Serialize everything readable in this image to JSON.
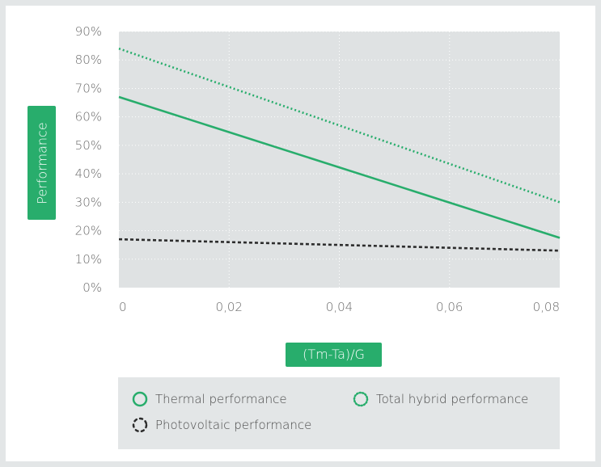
{
  "chart_data": {
    "type": "line",
    "title": "",
    "xlabel": "(Tm-Ta)/G",
    "ylabel": "Performance",
    "x_ticks": [
      "0",
      "0,02",
      "0,04",
      "0,06",
      "0,08"
    ],
    "y_ticks": [
      "0%",
      "10%",
      "20%",
      "30%",
      "40%",
      "50%",
      "60%",
      "70%",
      "80%",
      "90%"
    ],
    "xlim": [
      0,
      0.08
    ],
    "ylim": [
      0,
      0.9
    ],
    "grid": true,
    "legend_position": "bottom",
    "series": [
      {
        "name": "Thermal performance",
        "style": "solid",
        "color": "#28ad6c",
        "x": [
          0,
          0.08
        ],
        "y": [
          0.67,
          0.175
        ]
      },
      {
        "name": "Total hybrid performance",
        "style": "dotted",
        "color": "#28ad6c",
        "x": [
          0,
          0.08
        ],
        "y": [
          0.84,
          0.3
        ]
      },
      {
        "name": "Photovoltaic performance",
        "style": "dashed",
        "color": "#2c2c2c",
        "x": [
          0,
          0.08
        ],
        "y": [
          0.17,
          0.13
        ]
      }
    ]
  },
  "colors": {
    "accent": "#28ad6c",
    "plot_background": "#dfe2e3",
    "legend_background": "#e3e6e7",
    "frame": "#e3e6e7"
  }
}
